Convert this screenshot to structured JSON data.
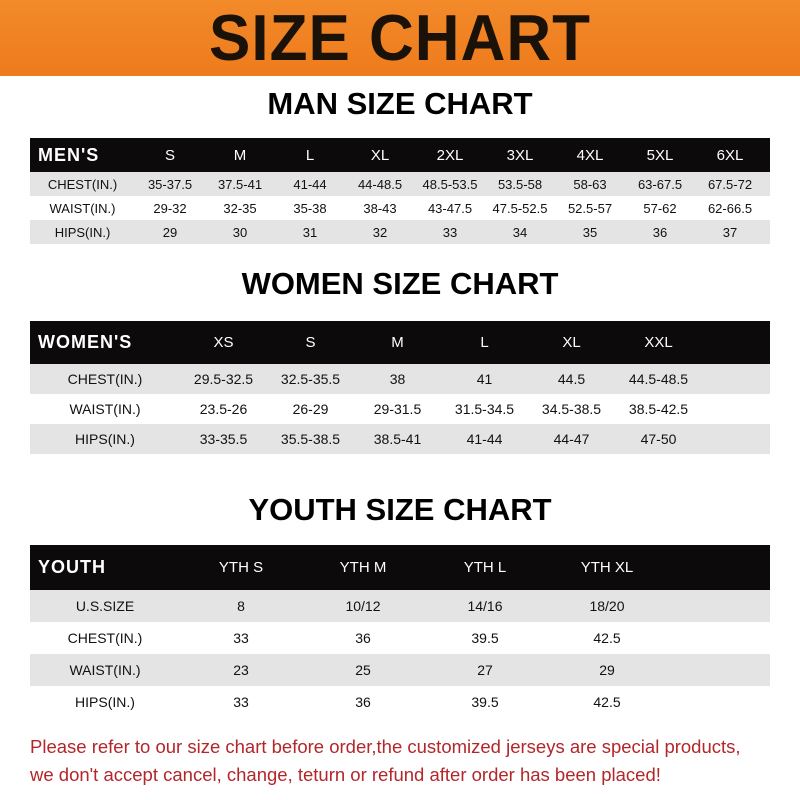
{
  "banner_title": "SIZE CHART",
  "men": {
    "title": "MAN SIZE CHART",
    "header": [
      "MEN'S",
      "S",
      "M",
      "L",
      "XL",
      "2XL",
      "3XL",
      "4XL",
      "5XL",
      "6XL"
    ],
    "rows": [
      [
        "CHEST(IN.)",
        "35-37.5",
        "37.5-41",
        "41-44",
        "44-48.5",
        "48.5-53.5",
        "53.5-58",
        "58-63",
        "63-67.5",
        "67.5-72"
      ],
      [
        "WAIST(IN.)",
        "29-32",
        "32-35",
        "35-38",
        "38-43",
        "43-47.5",
        "47.5-52.5",
        "52.5-57",
        "57-62",
        "62-66.5"
      ],
      [
        "HIPS(IN.)",
        "29",
        "30",
        "31",
        "32",
        "33",
        "34",
        "35",
        "36",
        "37"
      ]
    ]
  },
  "women": {
    "title": "WOMEN SIZE CHART",
    "header": [
      "WOMEN'S",
      "XS",
      "S",
      "M",
      "L",
      "XL",
      "XXL"
    ],
    "rows": [
      [
        "CHEST(IN.)",
        "29.5-32.5",
        "32.5-35.5",
        "38",
        "41",
        "44.5",
        "44.5-48.5"
      ],
      [
        "WAIST(IN.)",
        "23.5-26",
        "26-29",
        "29-31.5",
        "31.5-34.5",
        "34.5-38.5",
        "38.5-42.5"
      ],
      [
        "HIPS(IN.)",
        "33-35.5",
        "35.5-38.5",
        "38.5-41",
        "41-44",
        "44-47",
        "47-50"
      ]
    ]
  },
  "youth": {
    "title": "YOUTH SIZE CHART",
    "header": [
      "YOUTH",
      "YTH S",
      "YTH M",
      "YTH L",
      "YTH XL"
    ],
    "rows": [
      [
        "U.S.SIZE",
        "8",
        "10/12",
        "14/16",
        "18/20"
      ],
      [
        "CHEST(IN.)",
        "33",
        "36",
        "39.5",
        "42.5"
      ],
      [
        "WAIST(IN.)",
        "23",
        "25",
        "27",
        "29"
      ],
      [
        "HIPS(IN.)",
        "33",
        "36",
        "39.5",
        "42.5"
      ]
    ]
  },
  "notice": [
    "Please refer to our size chart before order,the customized jerseys are special products,",
    "we don't accept cancel, change, teturn or refund after order has been placed!"
  ]
}
